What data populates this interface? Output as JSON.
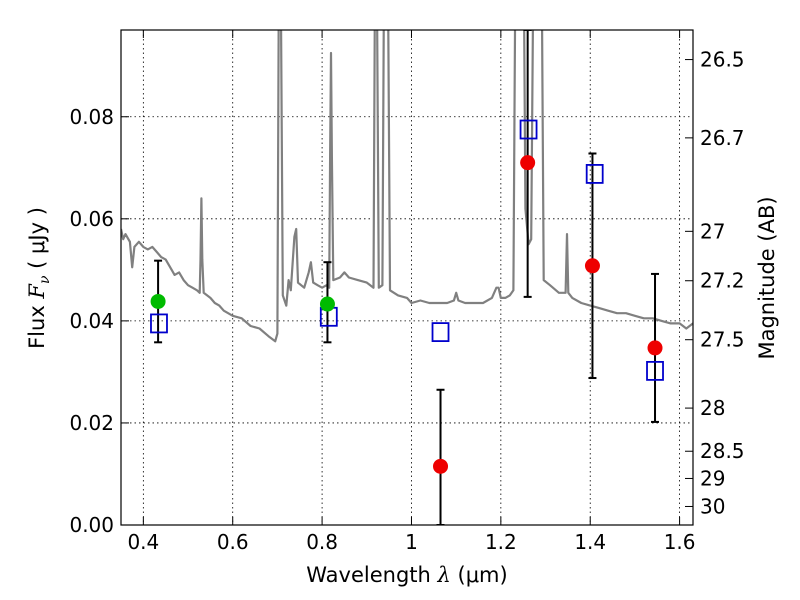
{
  "chart_data": {
    "type": "scatter",
    "xlabel": {
      "pre": "Wavelength  ",
      "sym": "λ",
      "unit": " (μm)"
    },
    "ylabel": {
      "pre": "Flux  ",
      "sym": "F",
      "sub": "ν",
      "unit": "  ( μJy )"
    },
    "y2label": "Magnitude (AB)",
    "xlim": [
      0.35,
      1.63
    ],
    "ylim": [
      0.0,
      0.097
    ],
    "grid": true,
    "x_ticks": [
      {
        "value": 0.4,
        "label": "0.4"
      },
      {
        "value": 0.6,
        "label": "0.6"
      },
      {
        "value": 0.8,
        "label": "0.8"
      },
      {
        "value": 1.0,
        "label": "1"
      },
      {
        "value": 1.2,
        "label": "1.2"
      },
      {
        "value": 1.4,
        "label": "1.4"
      },
      {
        "value": 1.6,
        "label": "1.6"
      }
    ],
    "y_ticks": [
      {
        "value": 0.0,
        "label": "0.00"
      },
      {
        "value": 0.02,
        "label": "0.02"
      },
      {
        "value": 0.04,
        "label": "0.04"
      },
      {
        "value": 0.06,
        "label": "0.06"
      },
      {
        "value": 0.08,
        "label": "0.08"
      }
    ],
    "mag_ticks": [
      {
        "mag": 26.5,
        "label": "26.5"
      },
      {
        "mag": 26.7,
        "label": "26.7"
      },
      {
        "mag": 27.0,
        "label": "27"
      },
      {
        "mag": 27.2,
        "label": "27.2"
      },
      {
        "mag": 27.5,
        "label": "27.5"
      },
      {
        "mag": 28.0,
        "label": "28"
      },
      {
        "mag": 28.5,
        "label": "28.5"
      },
      {
        "mag": 29.0,
        "label": "29"
      },
      {
        "mag": 30.0,
        "label": "30"
      }
    ],
    "colors": {
      "model": "#808080",
      "detected": "#00bb00",
      "measured": "#ee0000",
      "model_phot": "#0000cc",
      "errorbar": "#000000"
    },
    "model_spectrum": [
      [
        0.35,
        0.058
      ],
      [
        0.355,
        0.056
      ],
      [
        0.36,
        0.057
      ],
      [
        0.37,
        0.0555
      ],
      [
        0.375,
        0.0505
      ],
      [
        0.38,
        0.0545
      ],
      [
        0.39,
        0.0555
      ],
      [
        0.4,
        0.0545
      ],
      [
        0.41,
        0.054
      ],
      [
        0.42,
        0.0545
      ],
      [
        0.43,
        0.0535
      ],
      [
        0.44,
        0.0525
      ],
      [
        0.45,
        0.052
      ],
      [
        0.46,
        0.0505
      ],
      [
        0.47,
        0.049
      ],
      [
        0.48,
        0.0495
      ],
      [
        0.49,
        0.048
      ],
      [
        0.5,
        0.047
      ],
      [
        0.51,
        0.0465
      ],
      [
        0.52,
        0.046
      ],
      [
        0.526,
        0.0455
      ],
      [
        0.528,
        0.052
      ],
      [
        0.53,
        0.064
      ],
      [
        0.532,
        0.052
      ],
      [
        0.535,
        0.0455
      ],
      [
        0.55,
        0.0445
      ],
      [
        0.56,
        0.0435
      ],
      [
        0.57,
        0.043
      ],
      [
        0.58,
        0.042
      ],
      [
        0.6,
        0.041
      ],
      [
        0.62,
        0.0405
      ],
      [
        0.64,
        0.039
      ],
      [
        0.66,
        0.0385
      ],
      [
        0.68,
        0.037
      ],
      [
        0.695,
        0.036
      ],
      [
        0.7,
        0.0375
      ],
      [
        0.703,
        0.1
      ],
      [
        0.708,
        0.1
      ],
      [
        0.712,
        0.045
      ],
      [
        0.72,
        0.043
      ],
      [
        0.725,
        0.048
      ],
      [
        0.73,
        0.046
      ],
      [
        0.738,
        0.0565
      ],
      [
        0.742,
        0.058
      ],
      [
        0.746,
        0.0475
      ],
      [
        0.76,
        0.0465
      ],
      [
        0.77,
        0.0495
      ],
      [
        0.775,
        0.0515
      ],
      [
        0.78,
        0.0475
      ],
      [
        0.79,
        0.047
      ],
      [
        0.8,
        0.0465
      ],
      [
        0.81,
        0.047
      ],
      [
        0.816,
        0.0465
      ],
      [
        0.818,
        0.072
      ],
      [
        0.82,
        0.0925
      ],
      [
        0.822,
        0.072
      ],
      [
        0.825,
        0.048
      ],
      [
        0.84,
        0.0485
      ],
      [
        0.85,
        0.0495
      ],
      [
        0.86,
        0.0485
      ],
      [
        0.88,
        0.048
      ],
      [
        0.9,
        0.0475
      ],
      [
        0.915,
        0.0465
      ],
      [
        0.918,
        0.1
      ],
      [
        0.923,
        0.1
      ],
      [
        0.927,
        0.0465
      ],
      [
        0.935,
        0.047
      ],
      [
        0.938,
        0.1
      ],
      [
        0.948,
        0.1
      ],
      [
        0.952,
        0.046
      ],
      [
        0.97,
        0.045
      ],
      [
        0.99,
        0.0445
      ],
      [
        1.0,
        0.0435
      ],
      [
        1.02,
        0.044
      ],
      [
        1.04,
        0.0435
      ],
      [
        1.06,
        0.0435
      ],
      [
        1.08,
        0.0435
      ],
      [
        1.095,
        0.044
      ],
      [
        1.1,
        0.0455
      ],
      [
        1.105,
        0.044
      ],
      [
        1.12,
        0.0435
      ],
      [
        1.14,
        0.0435
      ],
      [
        1.16,
        0.0435
      ],
      [
        1.18,
        0.0445
      ],
      [
        1.19,
        0.0465
      ],
      [
        1.195,
        0.0465
      ],
      [
        1.2,
        0.0445
      ],
      [
        1.21,
        0.0445
      ],
      [
        1.22,
        0.045
      ],
      [
        1.228,
        0.046
      ],
      [
        1.232,
        0.1
      ],
      [
        1.252,
        0.1
      ],
      [
        1.255,
        0.062
      ],
      [
        1.262,
        0.055
      ],
      [
        1.268,
        0.056
      ],
      [
        1.272,
        0.1
      ],
      [
        1.292,
        0.1
      ],
      [
        1.296,
        0.048
      ],
      [
        1.31,
        0.047
      ],
      [
        1.33,
        0.0455
      ],
      [
        1.345,
        0.0455
      ],
      [
        1.348,
        0.057
      ],
      [
        1.351,
        0.0455
      ],
      [
        1.36,
        0.0445
      ],
      [
        1.38,
        0.0435
      ],
      [
        1.4,
        0.043
      ],
      [
        1.42,
        0.0425
      ],
      [
        1.44,
        0.042
      ],
      [
        1.46,
        0.0415
      ],
      [
        1.48,
        0.0415
      ],
      [
        1.5,
        0.041
      ],
      [
        1.52,
        0.0405
      ],
      [
        1.54,
        0.0405
      ],
      [
        1.56,
        0.04
      ],
      [
        1.58,
        0.0395
      ],
      [
        1.6,
        0.0395
      ],
      [
        1.615,
        0.0385
      ],
      [
        1.63,
        0.0395
      ]
    ],
    "detected": [
      {
        "x": 0.433,
        "y": 0.0438,
        "ylow": 0.0358,
        "yhigh": 0.0518
      },
      {
        "x": 0.812,
        "y": 0.0433,
        "ylow": 0.0358,
        "yhigh": 0.0515
      }
    ],
    "measured": [
      {
        "x": 1.065,
        "y": 0.0115,
        "ylow": 0.0,
        "yhigh": 0.0265
      },
      {
        "x": 1.26,
        "y": 0.071,
        "ylow": 0.0447,
        "yhigh": 0.097
      },
      {
        "x": 1.405,
        "y": 0.0508,
        "ylow": 0.0288,
        "yhigh": 0.0728
      },
      {
        "x": 1.545,
        "y": 0.0347,
        "ylow": 0.0202,
        "yhigh": 0.0492
      }
    ],
    "model_phot": [
      {
        "x": 0.435,
        "y": 0.0395
      },
      {
        "x": 0.815,
        "y": 0.0408
      },
      {
        "x": 1.065,
        "y": 0.0378
      },
      {
        "x": 1.262,
        "y": 0.0775
      },
      {
        "x": 1.41,
        "y": 0.0688
      },
      {
        "x": 1.545,
        "y": 0.0302
      }
    ]
  }
}
